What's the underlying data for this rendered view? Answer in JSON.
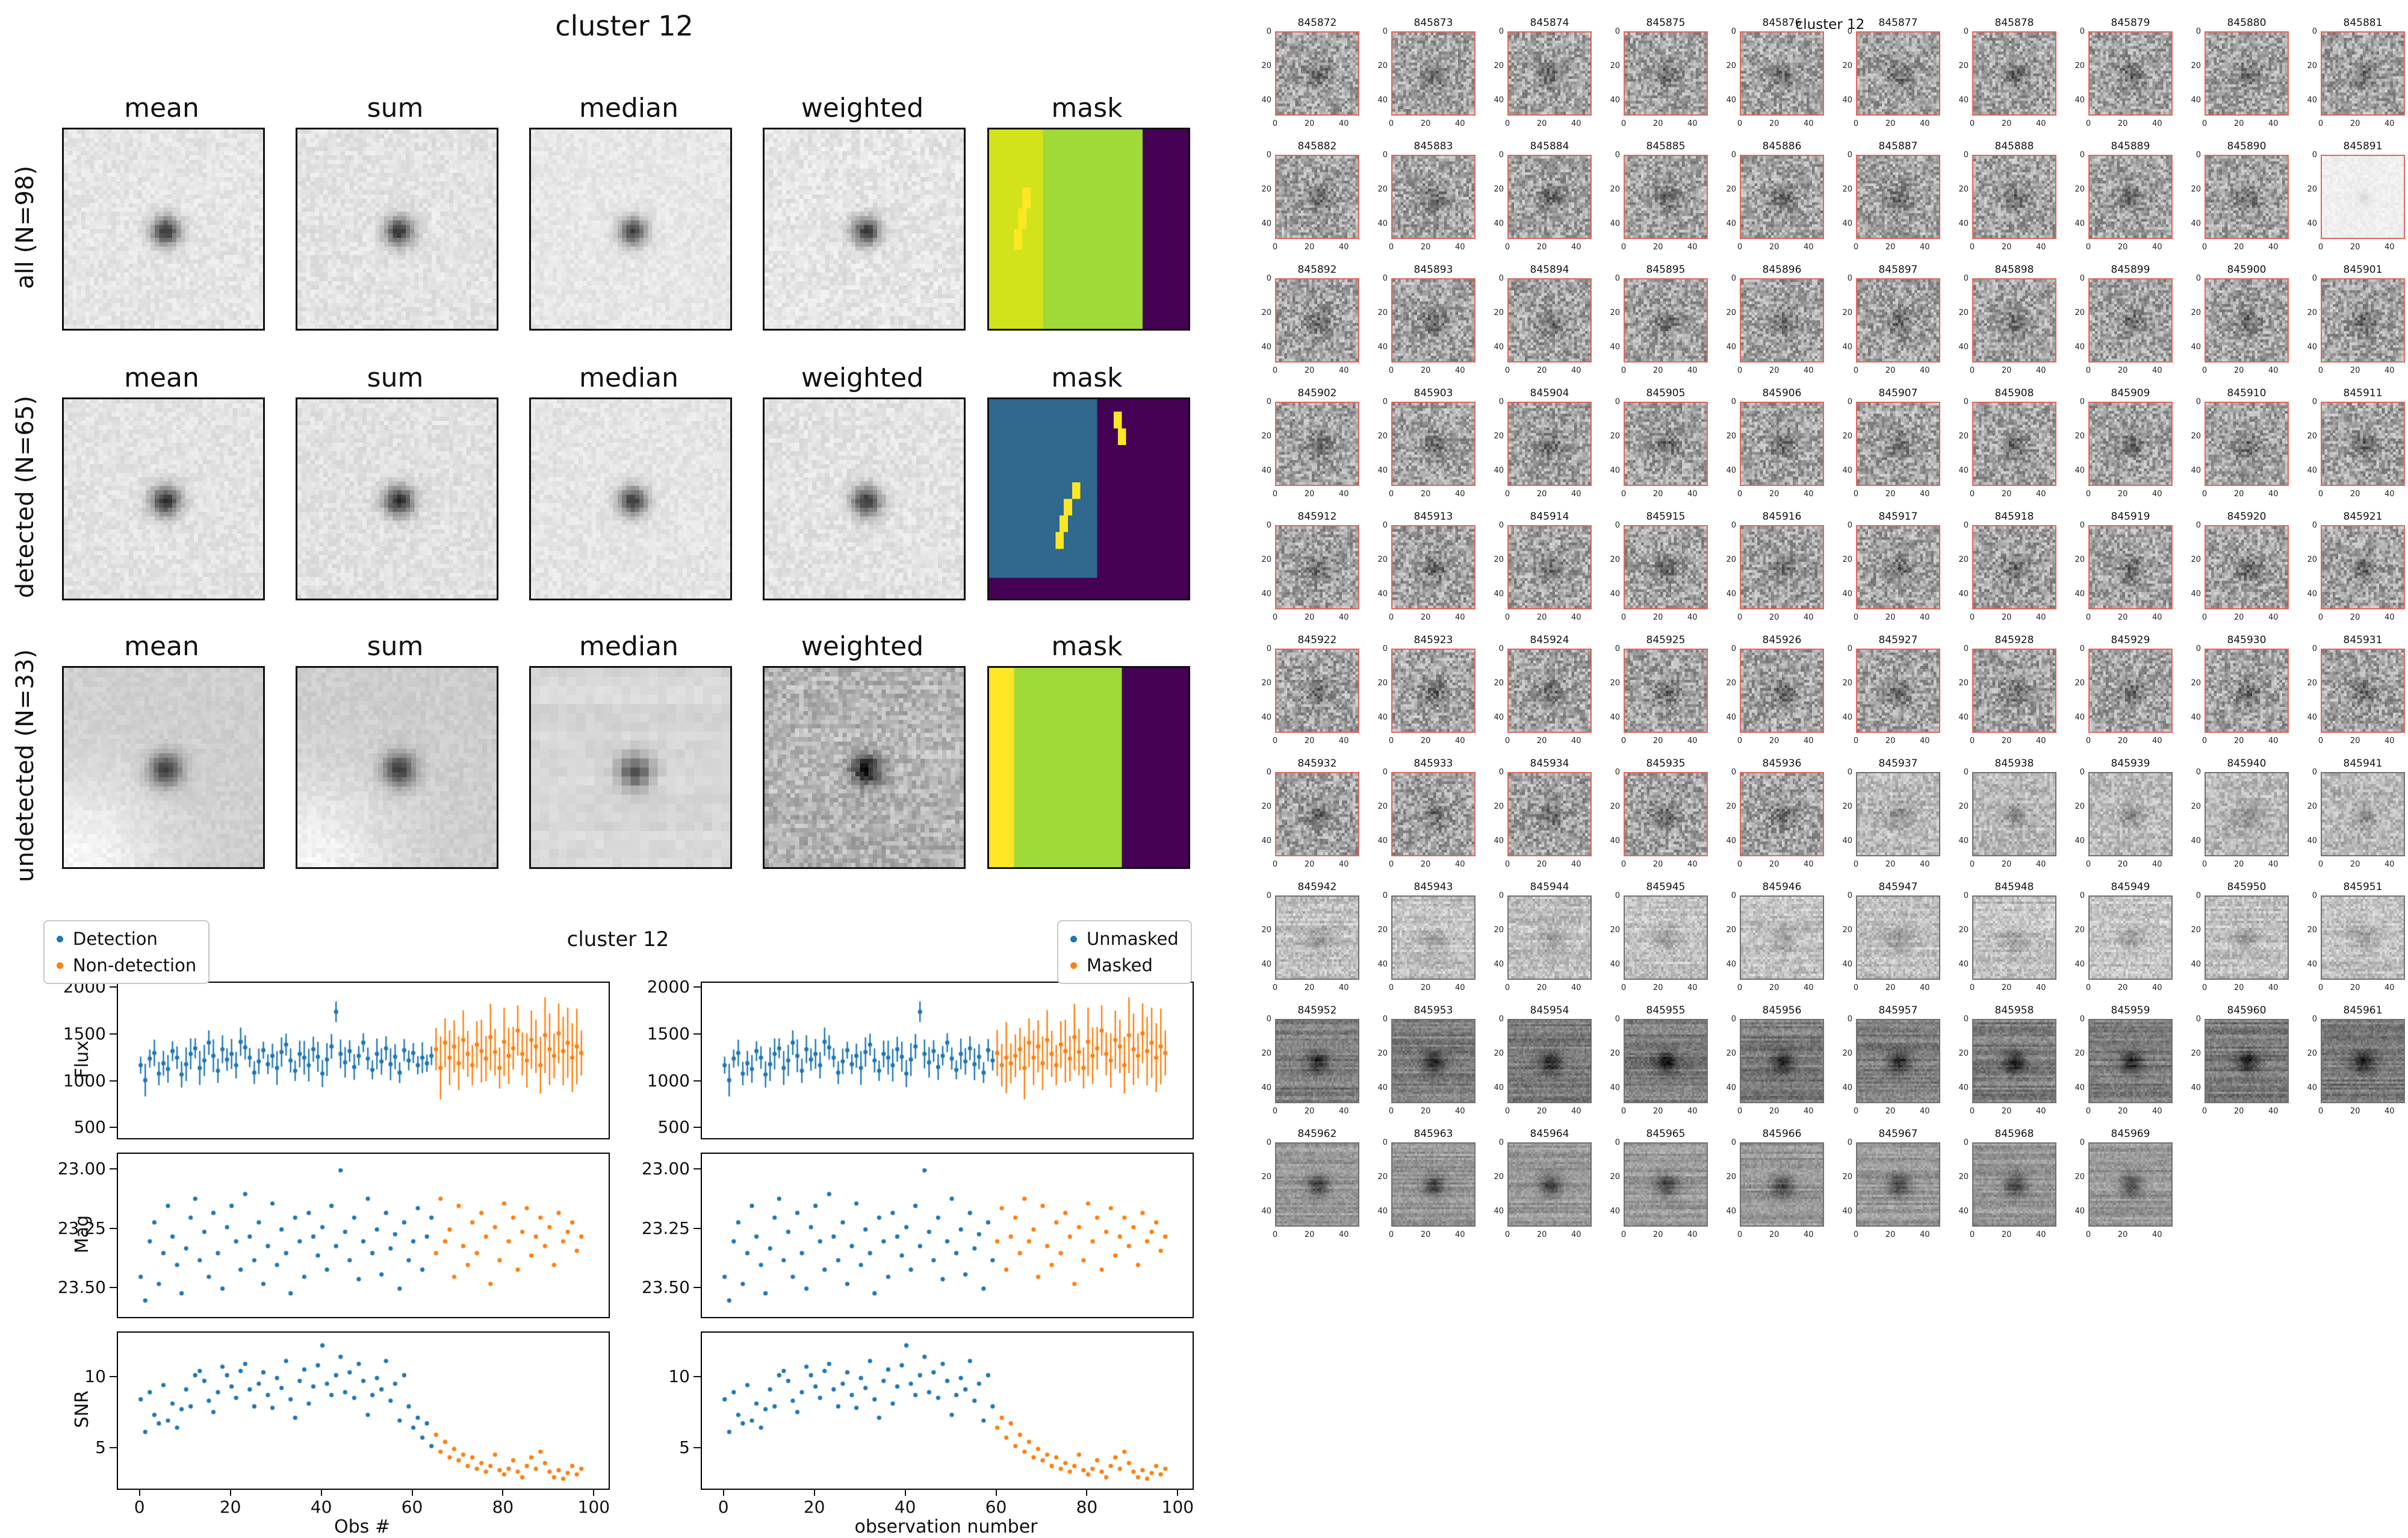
{
  "colors": {
    "blue": "#1f77b4",
    "orange": "#ff7f0e",
    "red_border": "#e0685c",
    "gray_border": "#707070",
    "viridis_purple": "#440154",
    "viridis_teal": "#31688e",
    "viridis_green": "#a0da39",
    "viridis_yellowgreen": "#d2e21b",
    "viridis_yellow": "#fde725"
  },
  "left_figure": {
    "title": "cluster 12",
    "col_titles": [
      "mean",
      "sum",
      "median",
      "weighted",
      "mask"
    ],
    "rows": [
      {
        "label": "all (N=98)",
        "cells": [
          {
            "bg": 229,
            "noise": 12,
            "blob": 175,
            "sigma": 0.05,
            "res": 46,
            "stripes": 0,
            "corner": 0
          },
          {
            "bg": 227,
            "noise": 13,
            "blob": 175,
            "sigma": 0.05,
            "res": 46,
            "stripes": 0,
            "corner": 0
          },
          {
            "bg": 231,
            "noise": 10,
            "blob": 168,
            "sigma": 0.048,
            "res": 46,
            "stripes": 0,
            "corner": 0
          },
          {
            "bg": 229,
            "noise": 15,
            "blob": 168,
            "sigma": 0.05,
            "res": 46,
            "stripes": 0,
            "corner": 0
          }
        ],
        "mask": {
          "segments": [
            {
              "x": 0,
              "w": 0.27,
              "c": "yellowgreen"
            },
            {
              "x": 0.27,
              "w": 0.51,
              "c": "green"
            },
            {
              "x": 0.78,
              "w": 0.22,
              "c": "purple"
            }
          ],
          "marks": [
            {
              "x": 0.175,
              "y": 0.3,
              "w": 0.045,
              "h": 0.1
            },
            {
              "x": 0.15,
              "y": 0.4,
              "w": 0.045,
              "h": 0.1
            },
            {
              "x": 0.125,
              "y": 0.5,
              "w": 0.045,
              "h": 0.1
            }
          ]
        }
      },
      {
        "label": "detected (N=65)",
        "cells": [
          {
            "bg": 227,
            "noise": 12,
            "blob": 180,
            "sigma": 0.052,
            "res": 46,
            "stripes": 0,
            "corner": 0
          },
          {
            "bg": 225,
            "noise": 13,
            "blob": 180,
            "sigma": 0.052,
            "res": 46,
            "stripes": 0,
            "corner": 0
          },
          {
            "bg": 229,
            "noise": 11,
            "blob": 172,
            "sigma": 0.05,
            "res": 46,
            "stripes": 0,
            "corner": 0
          },
          {
            "bg": 227,
            "noise": 14,
            "blob": 172,
            "sigma": 0.052,
            "res": 46,
            "stripes": 0,
            "corner": 0
          }
        ],
        "mask": {
          "segments": [
            {
              "x": 0,
              "w": 0.55,
              "c": "teal"
            },
            {
              "x": 0.55,
              "w": 0.45,
              "c": "purple"
            }
          ],
          "bottom_strip": {
            "h": 0.1,
            "c": "purple"
          },
          "marks": [
            {
              "x": 0.41,
              "y": 0.42,
              "w": 0.04,
              "h": 0.09
            },
            {
              "x": 0.385,
              "y": 0.5,
              "w": 0.04,
              "h": 0.09
            },
            {
              "x": 0.36,
              "y": 0.58,
              "w": 0.04,
              "h": 0.09
            },
            {
              "x": 0.335,
              "y": 0.66,
              "w": 0.04,
              "h": 0.09
            },
            {
              "x": 0.62,
              "y": 0.06,
              "w": 0.04,
              "h": 0.09
            },
            {
              "x": 0.645,
              "y": 0.14,
              "w": 0.04,
              "h": 0.09
            }
          ]
        }
      },
      {
        "label": "undetected (N=33)",
        "cells": [
          {
            "bg": 207,
            "noise": 8,
            "blob": 150,
            "sigma": 0.058,
            "res": 42,
            "stripes": 0,
            "corner": 40
          },
          {
            "bg": 205,
            "noise": 9,
            "blob": 150,
            "sigma": 0.058,
            "res": 42,
            "stripes": 0,
            "corner": 40
          },
          {
            "bg": 215,
            "noise": 6,
            "blob": 135,
            "sigma": 0.06,
            "res": 22,
            "stripes": 5,
            "corner": 0
          },
          {
            "bg": 180,
            "noise": 28,
            "blob": 160,
            "sigma": 0.055,
            "res": 46,
            "stripes": 8,
            "corner": 0
          }
        ],
        "mask": {
          "segments": [
            {
              "x": 0,
              "w": 0.13,
              "c": "yellow"
            },
            {
              "x": 0.13,
              "w": 0.54,
              "c": "green"
            },
            {
              "x": 0.67,
              "w": 0.33,
              "c": "purple"
            }
          ]
        }
      }
    ]
  },
  "bottom_figure": {
    "title": "cluster 12",
    "legend_left": [
      {
        "label": "Detection",
        "color": "#1f77b4"
      },
      {
        "label": "Non-detection",
        "color": "#ff7f0e"
      }
    ],
    "legend_right": [
      {
        "label": "Unmasked",
        "color": "#1f77b4"
      },
      {
        "label": "Masked",
        "color": "#ff7f0e"
      }
    ],
    "xlabel_left": "Obs #",
    "xlabel_right": "observation number",
    "ylabels": [
      "Flux",
      "Mag",
      "SNR"
    ]
  },
  "chart_data": {
    "type": "scatter",
    "title": "cluster 12",
    "xlim": [
      -5,
      103
    ],
    "xticks": [
      0,
      20,
      40,
      60,
      80,
      100
    ],
    "splits": {
      "detection": 65,
      "masked": 60
    },
    "flux_err": {
      "series1": 130,
      "series2": 300
    },
    "flux": [
      1180,
      1020,
      1250,
      1310,
      1090,
      1200,
      1140,
      1330,
      1260,
      1080,
      1190,
      1300,
      1360,
      1150,
      1230,
      1420,
      1280,
      1120,
      1350,
      1240,
      1300,
      1180,
      1430,
      1370,
      1260,
      1100,
      1220,
      1340,
      1190,
      1280,
      1150,
      1320,
      1400,
      1230,
      1120,
      1300,
      1260,
      1180,
      1350,
      1270,
      1090,
      1240,
      1380,
      1750,
      1300,
      1210,
      1330,
      1160,
      1280,
      1420,
      1250,
      1130,
      1300,
      1220,
      1360,
      1190,
      1270,
      1100,
      1340,
      1230,
      1310,
      1180,
      1260,
      1200,
      1280,
      1350,
      1150,
      1420,
      1260,
      1380,
      1200,
      1450,
      1300,
      1180,
      1400,
      1330,
      1250,
      1480,
      1320,
      1150,
      1430,
      1280,
      1360,
      1550,
      1300,
      1230,
      1450,
      1380,
      1180,
      1500,
      1350,
      1280,
      1520,
      1330,
      1420,
      1260,
      1380,
      1310
    ],
    "mag": [
      23.45,
      23.55,
      23.3,
      23.22,
      23.48,
      23.35,
      23.15,
      23.28,
      23.4,
      23.52,
      23.33,
      23.2,
      23.12,
      23.38,
      23.26,
      23.45,
      23.18,
      23.35,
      23.5,
      23.24,
      23.15,
      23.3,
      23.42,
      23.1,
      23.28,
      23.38,
      23.22,
      23.48,
      23.32,
      23.14,
      23.4,
      23.25,
      23.35,
      23.52,
      23.2,
      23.3,
      23.45,
      23.18,
      23.28,
      23.36,
      23.24,
      23.42,
      23.15,
      23.32,
      23.0,
      23.26,
      23.38,
      23.2,
      23.46,
      23.3,
      23.12,
      23.35,
      23.25,
      23.44,
      23.18,
      23.33,
      23.27,
      23.5,
      23.22,
      23.38,
      23.3,
      23.16,
      23.42,
      23.28,
      23.2,
      23.35,
      23.12,
      23.3,
      23.25,
      23.45,
      23.15,
      23.32,
      23.4,
      23.22,
      23.35,
      23.18,
      23.28,
      23.48,
      23.24,
      23.38,
      23.14,
      23.3,
      23.2,
      23.42,
      23.26,
      23.16,
      23.36,
      23.28,
      23.2,
      23.32,
      23.24,
      23.4,
      23.18,
      23.3,
      23.26,
      23.22,
      23.34,
      23.28
    ],
    "snr": [
      8.5,
      6.2,
      9.0,
      7.4,
      6.8,
      9.5,
      7.0,
      8.2,
      6.5,
      7.8,
      9.2,
      8.0,
      10.2,
      10.5,
      9.8,
      8.4,
      7.6,
      9.0,
      10.8,
      10.2,
      9.4,
      8.6,
      10.5,
      11.0,
      9.2,
      8.0,
      9.6,
      10.4,
      8.8,
      7.9,
      10.0,
      9.3,
      11.2,
      8.5,
      7.2,
      9.8,
      10.6,
      8.2,
      9.4,
      10.9,
      12.3,
      9.6,
      8.8,
      10.2,
      11.5,
      9.0,
      10.4,
      8.6,
      11.0,
      9.8,
      7.4,
      8.8,
      10.0,
      9.2,
      11.2,
      8.4,
      9.6,
      7.0,
      10.2,
      8.0,
      6.5,
      7.2,
      5.8,
      6.8,
      5.2,
      6.0,
      4.8,
      5.5,
      4.4,
      5.0,
      4.2,
      4.6,
      3.8,
      4.4,
      3.6,
      4.0,
      3.4,
      3.8,
      4.6,
      3.5,
      3.2,
      3.6,
      4.2,
      3.4,
      3.0,
      3.8,
      4.4,
      3.6,
      4.8,
      4.0,
      3.4,
      3.0,
      3.5,
      2.9,
      3.3,
      3.8,
      3.2,
      3.6
    ],
    "panels": [
      {
        "id": "flux-left",
        "metric": "flux",
        "col": 0,
        "row": 0,
        "split": "detection",
        "errorbars": true,
        "ylim": [
          400,
          2060
        ],
        "yticks": [
          {
            "v": 2000,
            "t": "2000"
          },
          {
            "v": 1500,
            "t": "1500"
          },
          {
            "v": 1000,
            "t": "1000"
          },
          {
            "v": 500,
            "t": "500"
          }
        ],
        "series_names": [
          "Detection",
          "Non-detection"
        ],
        "ylabel": "Flux"
      },
      {
        "id": "flux-right",
        "metric": "flux",
        "col": 1,
        "row": 0,
        "split": "masked",
        "errorbars": true,
        "ylim": [
          400,
          2060
        ],
        "yticks": [
          {
            "v": 2000,
            "t": "2000"
          },
          {
            "v": 1500,
            "t": "1500"
          },
          {
            "v": 1000,
            "t": "1000"
          },
          {
            "v": 500,
            "t": "500"
          }
        ],
        "series_names": [
          "Unmasked",
          "Masked"
        ]
      },
      {
        "id": "mag-left",
        "metric": "mag",
        "col": 0,
        "row": 1,
        "split": "detection",
        "errorbars": false,
        "ylim": [
          23.62,
          22.93
        ],
        "yticks": [
          {
            "v": 23.0,
            "t": "23.00"
          },
          {
            "v": 23.25,
            "t": "23.25"
          },
          {
            "v": 23.5,
            "t": "23.50"
          }
        ],
        "series_names": [
          "Detection",
          "Non-detection"
        ],
        "ylabel": "Mag"
      },
      {
        "id": "mag-right",
        "metric": "mag",
        "col": 1,
        "row": 1,
        "split": "masked",
        "errorbars": false,
        "ylim": [
          23.62,
          22.93
        ],
        "yticks": [
          {
            "v": 23.0,
            "t": "23.00"
          },
          {
            "v": 23.25,
            "t": "23.25"
          },
          {
            "v": 23.5,
            "t": "23.50"
          }
        ],
        "series_names": [
          "Unmasked",
          "Masked"
        ]
      },
      {
        "id": "snr-left",
        "metric": "snr",
        "col": 0,
        "row": 2,
        "split": "detection",
        "errorbars": false,
        "xticklabels": true,
        "ylim": [
          2.2,
          13.2
        ],
        "yticks": [
          {
            "v": 10,
            "t": "10"
          },
          {
            "v": 5,
            "t": "5"
          }
        ],
        "series_names": [
          "Detection",
          "Non-detection"
        ],
        "ylabel": "SNR",
        "xlabel": "Obs #"
      },
      {
        "id": "snr-right",
        "metric": "snr",
        "col": 1,
        "row": 2,
        "split": "masked",
        "errorbars": false,
        "xticklabels": true,
        "ylim": [
          2.2,
          13.2
        ],
        "yticks": [
          {
            "v": 10,
            "t": "10"
          },
          {
            "v": 5,
            "t": "5"
          }
        ],
        "series_names": [
          "Unmasked",
          "Masked"
        ],
        "xlabel": "observation number"
      }
    ]
  },
  "right_figure": {
    "title": "cluster 12",
    "axis_ticks": [
      0,
      20,
      40
    ],
    "axis_max": 49,
    "red_border_count": 65,
    "stamp_ids": [
      845872,
      845873,
      845874,
      845875,
      845876,
      845877,
      845878,
      845879,
      845880,
      845881,
      845882,
      845883,
      845884,
      845885,
      845886,
      845887,
      845888,
      845889,
      845890,
      845891,
      845892,
      845893,
      845894,
      845895,
      845896,
      845897,
      845898,
      845899,
      845900,
      845901,
      845902,
      845903,
      845904,
      845905,
      845906,
      845907,
      845908,
      845909,
      845910,
      845911,
      845912,
      845913,
      845914,
      845915,
      845916,
      845917,
      845918,
      845919,
      845920,
      845921,
      845922,
      845923,
      845924,
      845925,
      845926,
      845927,
      845928,
      845929,
      845930,
      845931,
      845932,
      845933,
      845934,
      845935,
      845936,
      845937,
      845938,
      845939,
      845940,
      845941,
      845942,
      845943,
      845944,
      845945,
      845946,
      845947,
      845948,
      845949,
      845950,
      845951,
      845952,
      845953,
      845954,
      845955,
      845956,
      845957,
      845958,
      845959,
      845960,
      845961,
      845962,
      845963,
      845964,
      845965,
      845966,
      845967,
      845968,
      845969
    ],
    "style_groups": [
      {
        "from": 0,
        "to": 64,
        "bg": 163,
        "noise": 50,
        "blob": 60,
        "sigma": 0.1,
        "res": 30,
        "stripes": 0,
        "border": "red"
      },
      {
        "from": 65,
        "to": 69,
        "bg": 186,
        "noise": 32,
        "blob": 45,
        "sigma": 0.1,
        "res": 30,
        "stripes": 8,
        "border": "gray"
      },
      {
        "from": 70,
        "to": 79,
        "bg": 193,
        "noise": 26,
        "blob": 38,
        "sigma": 0.1,
        "res": 34,
        "stripes": 14,
        "border": "gray"
      },
      {
        "from": 80,
        "to": 89,
        "bg": 124,
        "noise": 20,
        "blob": 90,
        "sigma": 0.09,
        "res": 40,
        "stripes": 22,
        "border": "gray"
      },
      {
        "from": 90,
        "to": 97,
        "bg": 152,
        "noise": 18,
        "blob": 85,
        "sigma": 0.09,
        "res": 40,
        "stripes": 18,
        "border": "gray"
      }
    ],
    "special": [
      {
        "index": 19,
        "bg": 239,
        "noise": 7,
        "blob": 20,
        "sigma": 0.06,
        "res": 30,
        "stripes": 0,
        "border": "red"
      }
    ]
  }
}
